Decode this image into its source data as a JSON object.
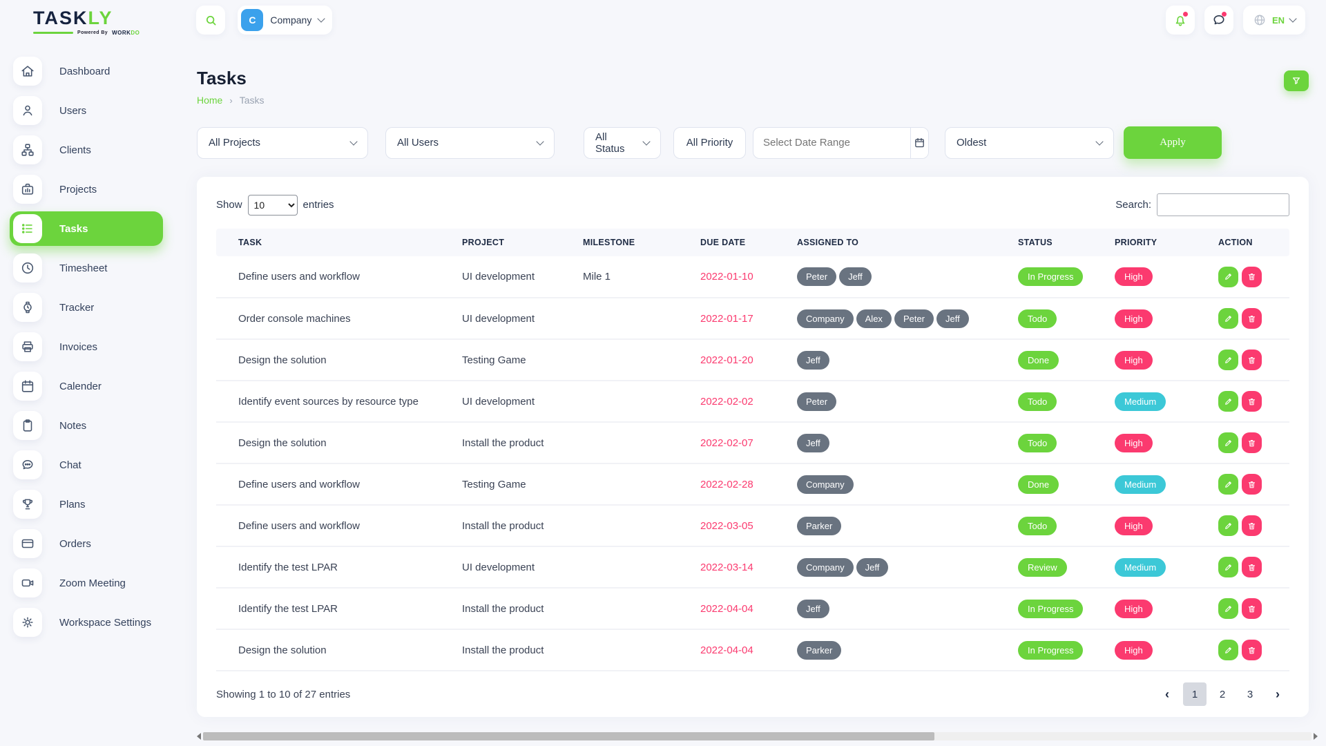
{
  "colors": {
    "accent_green": "#6cd43d",
    "pink": "#fb3a6f",
    "teal": "#3cc8d7",
    "chip_gray": "#697380",
    "avatar_blue": "#3ba1ec"
  },
  "brand": {
    "name_primary": "TASK",
    "name_accent": "LY",
    "tagline_prefix": "Powered By",
    "tagline_word1": "WORK",
    "tagline_word2": "DO"
  },
  "header": {
    "company": {
      "initial": "C",
      "name": "Company"
    },
    "language": "EN"
  },
  "sidebar": {
    "items": [
      {
        "label": "Dashboard",
        "icon": "home",
        "active": false
      },
      {
        "label": "Users",
        "icon": "user",
        "active": false
      },
      {
        "label": "Clients",
        "icon": "network",
        "active": false
      },
      {
        "label": "Projects",
        "icon": "briefcase",
        "active": false
      },
      {
        "label": "Tasks",
        "icon": "list",
        "active": true
      },
      {
        "label": "Timesheet",
        "icon": "clock",
        "active": false
      },
      {
        "label": "Tracker",
        "icon": "watch",
        "active": false
      },
      {
        "label": "Invoices",
        "icon": "printer",
        "active": false
      },
      {
        "label": "Calender",
        "icon": "calendar",
        "active": false
      },
      {
        "label": "Notes",
        "icon": "clipboard",
        "active": false
      },
      {
        "label": "Chat",
        "icon": "chat",
        "active": false
      },
      {
        "label": "Plans",
        "icon": "trophy",
        "active": false
      },
      {
        "label": "Orders",
        "icon": "credit-card",
        "active": false
      },
      {
        "label": "Zoom Meeting",
        "icon": "video",
        "active": false
      },
      {
        "label": "Workspace Settings",
        "icon": "gear",
        "active": false
      }
    ]
  },
  "page": {
    "title": "Tasks",
    "breadcrumb_home": "Home",
    "breadcrumb_current": "Tasks"
  },
  "filters": {
    "project": "All Projects",
    "users": "All Users",
    "status": "All Status",
    "priority": "All Priority",
    "date_placeholder": "Select Date Range",
    "sort": "Oldest",
    "apply_label": "Apply"
  },
  "table": {
    "show_label": "Show",
    "page_size": "10",
    "entries_label": "entries",
    "search_label": "Search:",
    "search_value": "",
    "columns": [
      "TASK",
      "PROJECT",
      "MILESTONE",
      "DUE DATE",
      "ASSIGNED TO",
      "STATUS",
      "PRIORITY",
      "ACTION"
    ],
    "rows": [
      {
        "task": "Define users and workflow",
        "project": "UI development",
        "milestone": "Mile 1",
        "due_date": "2022-01-10",
        "assigned": [
          "Peter",
          "Jeff"
        ],
        "status": "In Progress",
        "priority": "High"
      },
      {
        "task": "Order console machines",
        "project": "UI development",
        "milestone": "",
        "due_date": "2022-01-17",
        "assigned": [
          "Company",
          "Alex",
          "Peter",
          "Jeff"
        ],
        "status": "Todo",
        "priority": "High"
      },
      {
        "task": "Design the solution",
        "project": "Testing Game",
        "milestone": "",
        "due_date": "2022-01-20",
        "assigned": [
          "Jeff"
        ],
        "status": "Done",
        "priority": "High"
      },
      {
        "task": "Identify event sources by resource type",
        "project": "UI development",
        "milestone": "",
        "due_date": "2022-02-02",
        "assigned": [
          "Peter"
        ],
        "status": "Todo",
        "priority": "Medium"
      },
      {
        "task": "Design the solution",
        "project": "Install the product",
        "milestone": "",
        "due_date": "2022-02-07",
        "assigned": [
          "Jeff"
        ],
        "status": "Todo",
        "priority": "High"
      },
      {
        "task": "Define users and workflow",
        "project": "Testing Game",
        "milestone": "",
        "due_date": "2022-02-28",
        "assigned": [
          "Company"
        ],
        "status": "Done",
        "priority": "Medium"
      },
      {
        "task": "Define users and workflow",
        "project": "Install the product",
        "milestone": "",
        "due_date": "2022-03-05",
        "assigned": [
          "Parker"
        ],
        "status": "Todo",
        "priority": "High"
      },
      {
        "task": "Identify the test LPAR",
        "project": "UI development",
        "milestone": "",
        "due_date": "2022-03-14",
        "assigned": [
          "Company",
          "Jeff"
        ],
        "status": "Review",
        "priority": "Medium"
      },
      {
        "task": "Identify the test LPAR",
        "project": "Install the product",
        "milestone": "",
        "due_date": "2022-04-04",
        "assigned": [
          "Jeff"
        ],
        "status": "In Progress",
        "priority": "High"
      },
      {
        "task": "Design the solution",
        "project": "Install the product",
        "milestone": "",
        "due_date": "2022-04-04",
        "assigned": [
          "Parker"
        ],
        "status": "In Progress",
        "priority": "High"
      }
    ],
    "footer": {
      "summary": "Showing 1 to 10 of 27 entries",
      "pagination": {
        "prev": "‹",
        "next": "›",
        "pages": [
          "1",
          "2",
          "3"
        ],
        "active": "1"
      }
    }
  }
}
